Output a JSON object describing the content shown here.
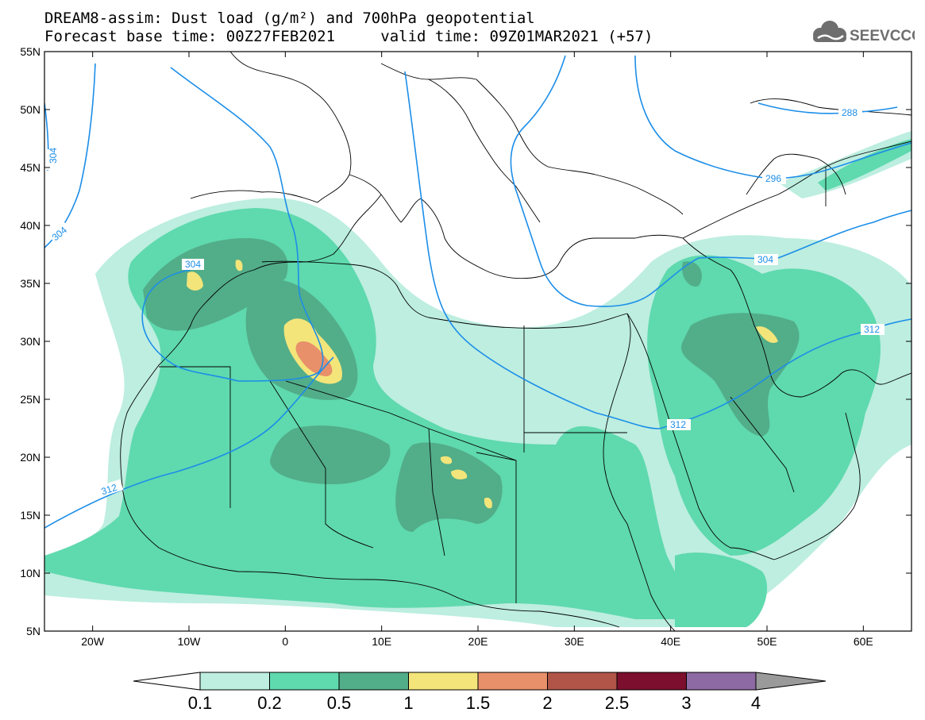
{
  "header": {
    "title_line1": "DREAM8-assim: Dust load (g/m²) and 700hPa geopotential",
    "base_time_label": "Forecast base time: 00Z27FEB2021",
    "valid_time_label": "valid time: 09Z01MAR2021 (+57)",
    "logo_text": "SEEVCCC"
  },
  "map": {
    "lat_ticks": [
      "55N",
      "50N",
      "45N",
      "40N",
      "35N",
      "30N",
      "25N",
      "20N",
      "15N",
      "10N",
      "5N"
    ],
    "lat_values": [
      55,
      50,
      45,
      40,
      35,
      30,
      25,
      20,
      15,
      10,
      5
    ],
    "lon_ticks": [
      "20W",
      "10W",
      "0",
      "10E",
      "20E",
      "30E",
      "40E",
      "50E",
      "60E"
    ],
    "lon_values": [
      -20,
      -10,
      0,
      10,
      20,
      30,
      40,
      50,
      60
    ],
    "contour_labels": [
      "304",
      "304",
      "304",
      "312",
      "312",
      "312",
      "288",
      "296",
      "304"
    ],
    "lon_range": [
      -25,
      65
    ],
    "lat_range": [
      5,
      55
    ]
  },
  "legend": {
    "ticks": [
      "0.1",
      "0.2",
      "0.5",
      "1",
      "1.5",
      "2",
      "2.5",
      "3",
      "4"
    ],
    "colors": [
      "#bdeee0",
      "#5fd9ae",
      "#52ad89",
      "#f3e57a",
      "#e8906a",
      "#b05547",
      "#7c0f2d",
      "#8d6aa3",
      "#9a9a9a"
    ]
  }
}
